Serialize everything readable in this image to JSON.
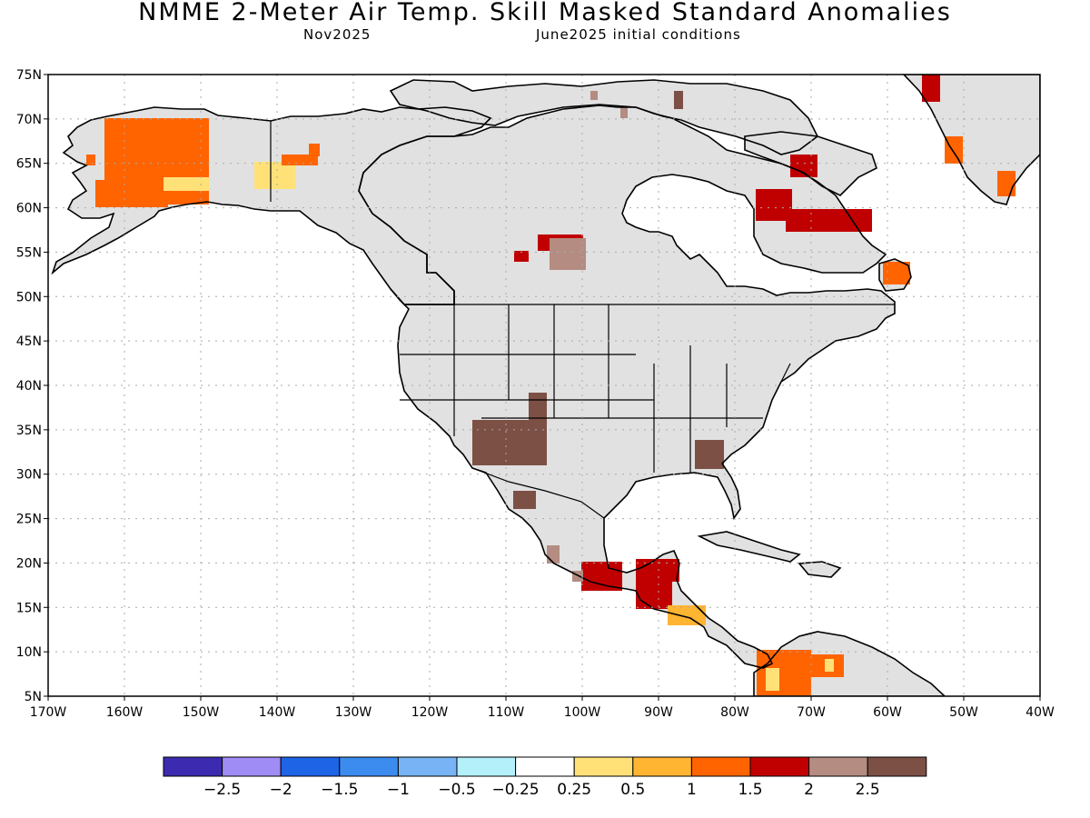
{
  "title": "NMME 2-Meter Air Temp. Skill Masked Standard Anomalies",
  "subtitle_left": "Nov2025",
  "subtitle_right": "June2025 initial conditions",
  "lat_labels": [
    "75N",
    "70N",
    "65N",
    "60N",
    "55N",
    "50N",
    "45N",
    "40N",
    "35N",
    "30N",
    "25N",
    "20N",
    "15N",
    "10N",
    "5N"
  ],
  "lon_labels": [
    "170W",
    "160W",
    "150W",
    "140W",
    "130W",
    "120W",
    "110W",
    "100W",
    "90W",
    "80W",
    "70W",
    "60W",
    "50W",
    "40W"
  ],
  "colorbar": {
    "colors": [
      "#3c2bb0",
      "#a08cf5",
      "#1e64e6",
      "#3c8cf0",
      "#78b4f5",
      "#b4f0fa",
      "#ffffff",
      "#ffe178",
      "#ffb432",
      "#ff6400",
      "#c00000",
      "#b48c82",
      "#7d5046"
    ],
    "labels": [
      "-2.5",
      "-2",
      "-1.5",
      "-1",
      "-0.5",
      "-0.25",
      "0.25",
      "0.5",
      "1",
      "1.5",
      "2",
      "2.5"
    ]
  },
  "colors": {
    "land_no_skill": "#e1e1e1",
    "ocean": "#ffffff",
    "grid": "#aaaaaa"
  }
}
